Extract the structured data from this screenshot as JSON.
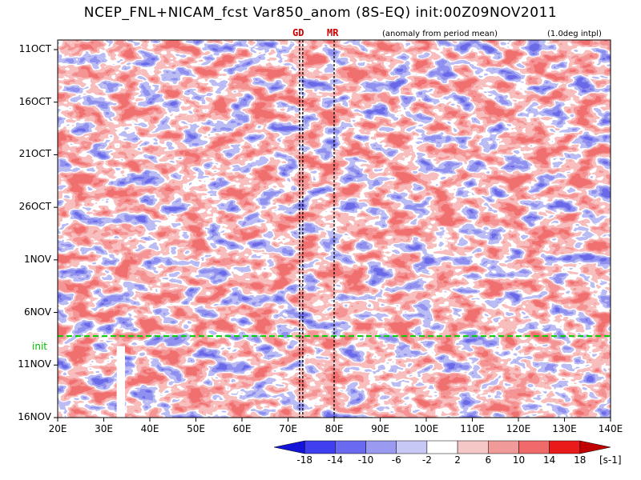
{
  "chart_data": {
    "type": "heatmap",
    "title": "NCEP_FNL+NICAM_fcst Var850_anom (8S-EQ) init:00Z09NOV2011",
    "subtitle_left": "(anomaly from period mean)",
    "subtitle_right": "(1.0deg intpl)",
    "xlabel": "",
    "ylabel": "",
    "x_ticks": [
      "20E",
      "30E",
      "40E",
      "50E",
      "60E",
      "70E",
      "80E",
      "90E",
      "100E",
      "110E",
      "120E",
      "130E",
      "140E"
    ],
    "x_range": [
      20,
      140
    ],
    "y_ticks": [
      "11OCT",
      "16OCT",
      "21OCT",
      "26OCT",
      "1NOV",
      "6NOV",
      "11NOV",
      "16NOV"
    ],
    "markers": [
      {
        "label": "GD",
        "lon": 72.5
      },
      {
        "label": "MR",
        "lon": 80
      }
    ],
    "init_line": {
      "label": "init",
      "date": "09NOV2011"
    },
    "colorbar": {
      "levels": [
        "-18",
        "-14",
        "-10",
        "-6",
        "-2",
        "2",
        "6",
        "10",
        "14",
        "18"
      ],
      "unit": "[s-1]",
      "colors": [
        "#1414d8",
        "#3f3ff0",
        "#6a6af0",
        "#9a9af0",
        "#c8c8f5",
        "#ffffff",
        "#f5c8c8",
        "#f09a9a",
        "#f06a6a",
        "#e81a1a",
        "#c00000"
      ]
    },
    "grid": false,
    "legend": "bottom"
  }
}
